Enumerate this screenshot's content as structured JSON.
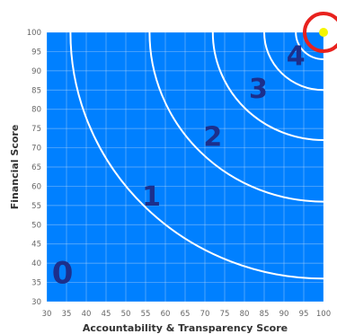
{
  "chart_data": {
    "type": "scatter",
    "xlabel": "Accountability & Transparency Score",
    "ylabel": "Financial Score",
    "xlim": [
      30,
      100
    ],
    "ylim": [
      30,
      100
    ],
    "x_ticks": [
      "30",
      "35",
      "40",
      "45",
      "50",
      "55",
      "60",
      "65",
      "70",
      "75",
      "80",
      "85",
      "90",
      "95",
      "100"
    ],
    "y_ticks": [
      "30",
      "35",
      "40",
      "45",
      "50",
      "55",
      "60",
      "65",
      "70",
      "75",
      "80",
      "85",
      "90",
      "95",
      "100"
    ],
    "grid": true,
    "rings": [
      {
        "label": "0",
        "radius": 64,
        "label_x": 34,
        "label_y": 37
      },
      {
        "label": "1",
        "radius": 44,
        "label_x": 56.5,
        "label_y": 57
      },
      {
        "label": "2",
        "radius": 28,
        "label_x": 72,
        "label_y": 72.5
      },
      {
        "label": "3",
        "radius": 15,
        "label_x": 83.5,
        "label_y": 85
      },
      {
        "label": "4",
        "radius": 7,
        "label_x": 93,
        "label_y": 93.5
      }
    ],
    "points": [
      {
        "x": 100,
        "y": 100,
        "color": "#f5f500"
      }
    ],
    "highlight_circle": {
      "x": 100,
      "y": 100,
      "color": "#e8221e"
    },
    "colors": {
      "plot_background": "#0080ff",
      "ring_line": "#ffffff",
      "grid": "#c8dcf6",
      "zone_label": "#1c2f8c"
    }
  }
}
